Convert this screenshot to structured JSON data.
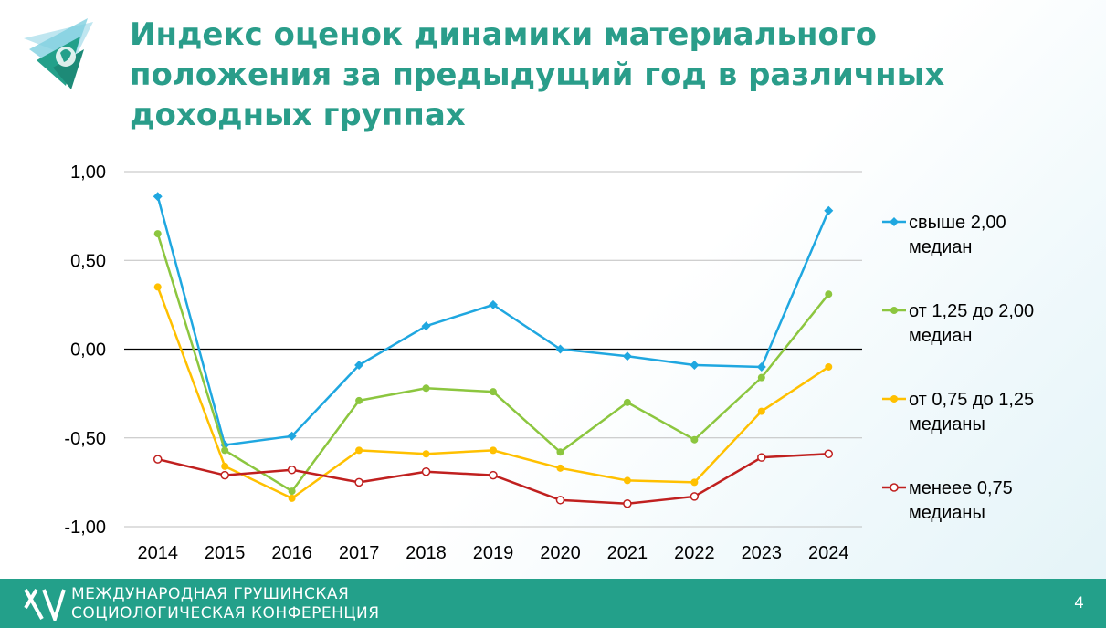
{
  "title": {
    "line1": "Индекс оценок динамики материального",
    "line2": "положения за предыдущий год в различных",
    "line3": "доходных группах"
  },
  "footer": {
    "line1": "МЕЖДУНАРОДНАЯ ГРУШИНСКАЯ",
    "line2": "СОЦИОЛОГИЧЕСКАЯ КОНФЕРЕНЦИЯ",
    "page_number": "4"
  },
  "colors": {
    "title": "#2a9d8a",
    "footer": "#23a08a",
    "series_blue": "#1fa7e0",
    "series_green": "#8cc63f",
    "series_yellow": "#ffc000",
    "series_red": "#c0201f"
  },
  "chart_data": {
    "type": "line",
    "x": [
      "2014",
      "2015",
      "2016",
      "2017",
      "2018",
      "2019",
      "2020",
      "2021",
      "2022",
      "2023",
      "2024"
    ],
    "ylim": [
      -1.0,
      1.0
    ],
    "yticks": [
      "1,00",
      "0,50",
      "0,00",
      "-0,50",
      "-1,00"
    ],
    "ytick_values": [
      1.0,
      0.5,
      0.0,
      -0.5,
      -1.0
    ],
    "grid": true,
    "legend_position": "right",
    "series": [
      {
        "name_line1": "свыше 2,00",
        "name_line2": "медиан",
        "color": "#1fa7e0",
        "marker": "diamond",
        "values": [
          0.86,
          -0.54,
          -0.49,
          -0.09,
          0.13,
          0.25,
          0.0,
          -0.04,
          -0.09,
          -0.1,
          0.78
        ]
      },
      {
        "name_line1": "от 1,25 до 2,00",
        "name_line2": "медиан",
        "color": "#8cc63f",
        "marker": "circle",
        "values": [
          0.65,
          -0.57,
          -0.8,
          -0.29,
          -0.22,
          -0.24,
          -0.58,
          -0.3,
          -0.51,
          -0.16,
          0.31
        ]
      },
      {
        "name_line1": "от 0,75 до 1,25",
        "name_line2": "медианы",
        "color": "#ffc000",
        "marker": "circle",
        "values": [
          0.35,
          -0.66,
          -0.84,
          -0.57,
          -0.59,
          -0.57,
          -0.67,
          -0.74,
          -0.75,
          -0.35,
          -0.1
        ]
      },
      {
        "name_line1": "менеее 0,75",
        "name_line2": "медианы",
        "color": "#c0201f",
        "marker": "open-circle",
        "values": [
          -0.62,
          -0.71,
          -0.68,
          -0.75,
          -0.69,
          -0.71,
          -0.85,
          -0.87,
          -0.83,
          -0.61,
          -0.59
        ]
      }
    ]
  }
}
